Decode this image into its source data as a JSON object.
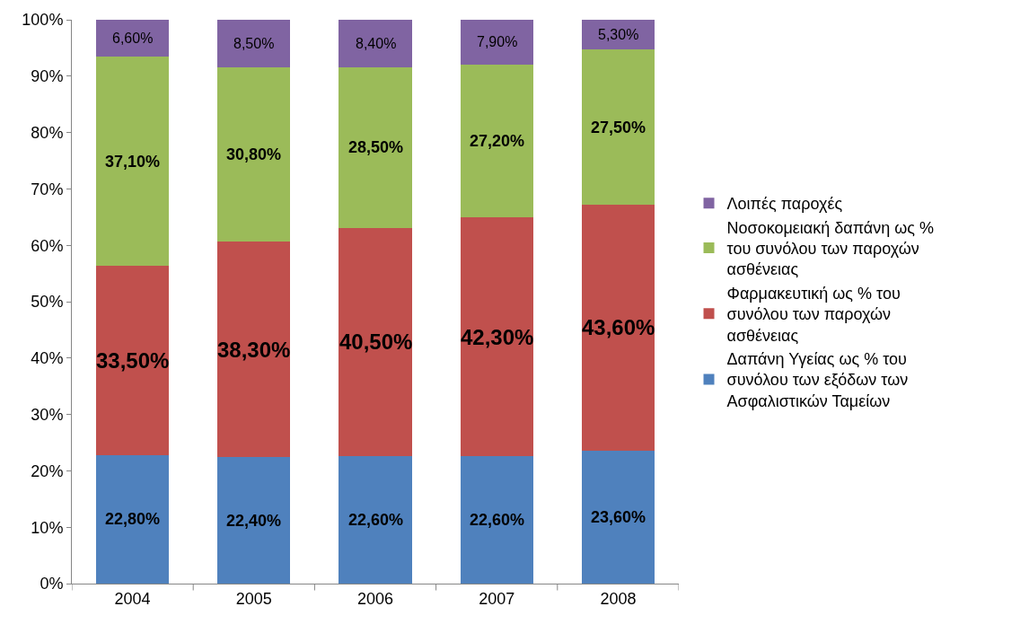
{
  "chart_data": {
    "type": "bar",
    "stacked": true,
    "categories": [
      "2004",
      "2005",
      "2006",
      "2007",
      "2008"
    ],
    "series": [
      {
        "name": "Δαπάνη Υγείας ως % του συνόλου των εξόδων των Ασφαλιστικών Ταμείων",
        "color": "#4f81bd",
        "values": [
          22.8,
          22.4,
          22.6,
          22.6,
          23.6
        ],
        "value_labels": [
          "22,80%",
          "22,40%",
          "22,60%",
          "22,60%",
          "23,60%"
        ]
      },
      {
        "name": "Φαρμακευτική ως % του συνόλου των παροχών ασθένειας",
        "color": "#c0504d",
        "values": [
          33.5,
          38.3,
          40.5,
          42.3,
          43.6
        ],
        "value_labels": [
          "33,50%",
          "38,30%",
          "40,50%",
          "42,30%",
          "43,60%"
        ]
      },
      {
        "name": "Νοσοκομειακή δαπάνη ως % του συνόλου των παροχών ασθένειας",
        "color": "#9bbb59",
        "values": [
          37.1,
          30.8,
          28.5,
          27.2,
          27.5
        ],
        "value_labels": [
          "37,10%",
          "30,80%",
          "28,50%",
          "27,20%",
          "27,50%"
        ]
      },
      {
        "name": "Λοιπές παροχές",
        "color": "#8064a2",
        "values": [
          6.6,
          8.5,
          8.4,
          7.9,
          5.3
        ],
        "value_labels": [
          "6,60%",
          "8,50%",
          "8,40%",
          "7,90%",
          "5,30%"
        ]
      }
    ],
    "ylim": [
      0,
      100
    ],
    "yticks": [
      {
        "value": 0,
        "label": "0%"
      },
      {
        "value": 10,
        "label": "10%"
      },
      {
        "value": 20,
        "label": "20%"
      },
      {
        "value": 30,
        "label": "30%"
      },
      {
        "value": 40,
        "label": "40%"
      },
      {
        "value": 50,
        "label": "50%"
      },
      {
        "value": 60,
        "label": "60%"
      },
      {
        "value": 70,
        "label": "70%"
      },
      {
        "value": 80,
        "label": "80%"
      },
      {
        "value": 90,
        "label": "90%"
      },
      {
        "value": 100,
        "label": "100%"
      }
    ],
    "legend": "right"
  }
}
